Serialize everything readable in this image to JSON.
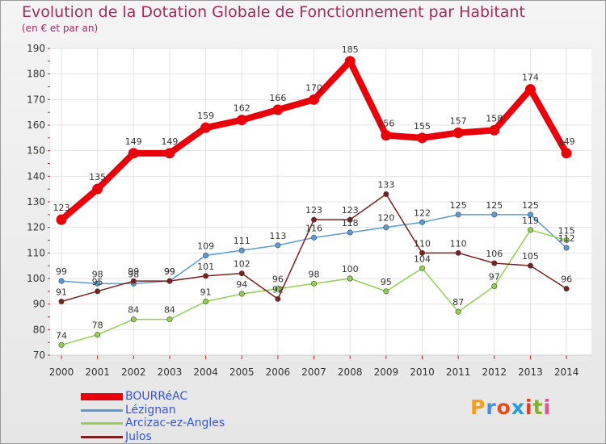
{
  "title": "Evolution de la Dotation Globale de Fonctionnement par Habitant",
  "subtitle": "(en € et par an)",
  "brand": {
    "letters": [
      "P",
      "r",
      "o",
      "x",
      "i",
      "t",
      "i"
    ],
    "colors": [
      "#f0a020",
      "#4a90d9",
      "#e05020",
      "#2a9ad8",
      "#e04020",
      "#80b030",
      "#e05090"
    ]
  },
  "chart_data": {
    "type": "line",
    "title": "Evolution de la Dotation Globale de Fonctionnement par Habitant",
    "subtitle": "(en € et par an)",
    "xlabel": "",
    "ylabel": "",
    "ylim": [
      70,
      190
    ],
    "yticks": [
      70,
      80,
      90,
      100,
      110,
      120,
      130,
      140,
      150,
      160,
      170,
      180,
      190
    ],
    "categories": [
      "2000",
      "2001",
      "2002",
      "2003",
      "2004",
      "2005",
      "2006",
      "2007",
      "2008",
      "2009",
      "2010",
      "2011",
      "2012",
      "2013",
      "2014"
    ],
    "series": [
      {
        "name": "BOURRéAC",
        "color": "#e8000b",
        "values": [
          123,
          135,
          149,
          149,
          159,
          162,
          166,
          170,
          185,
          156,
          155,
          157,
          158,
          174,
          149
        ]
      },
      {
        "name": "Lézignan",
        "color": "#5b9bd5",
        "values": [
          99,
          98,
          98,
          99,
          109,
          111,
          113,
          116,
          118,
          120,
          122,
          125,
          125,
          125,
          112
        ]
      },
      {
        "name": "Arcizac-ez-Angles",
        "color": "#92d050",
        "values": [
          74,
          78,
          84,
          84,
          91,
          94,
          96,
          98,
          100,
          95,
          104,
          87,
          97,
          119,
          115
        ]
      },
      {
        "name": "Julos",
        "color": "#7b2020",
        "values": [
          91,
          95,
          99,
          99,
          101,
          102,
          92,
          123,
          123,
          133,
          110,
          110,
          106,
          105,
          96
        ]
      }
    ]
  }
}
